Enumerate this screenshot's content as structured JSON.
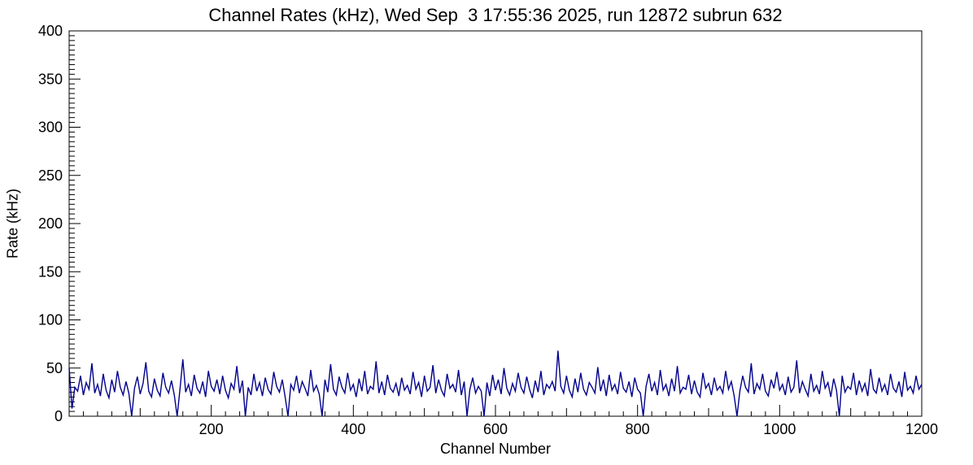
{
  "chart_data": {
    "type": "line",
    "title": "Channel Rates (kHz), Wed Sep  3 17:55:36 2025, run 12872 subrun 632",
    "xlabel": "Channel Number",
    "ylabel": "Rate (kHz)",
    "xlim": [
      0,
      1200
    ],
    "ylim": [
      0,
      400
    ],
    "x_ticks": [
      200,
      400,
      600,
      800,
      1000,
      1200
    ],
    "y_ticks": [
      0,
      50,
      100,
      150,
      200,
      250,
      300,
      350,
      400
    ],
    "grid": false,
    "legend_position": "none",
    "line_color": "#00008b",
    "frame_color": "#000000",
    "background_color": "#ffffff",
    "series": [
      {
        "name": "channel-rates",
        "x_start": 0,
        "x_step": 4,
        "values": [
          50,
          8,
          30,
          26,
          42,
          22,
          35,
          28,
          55,
          24,
          33,
          21,
          44,
          27,
          19,
          38,
          25,
          47,
          30,
          22,
          36,
          24,
          0,
          29,
          41,
          23,
          34,
          56,
          26,
          20,
          39,
          27,
          21,
          45,
          30,
          24,
          37,
          22,
          0,
          28,
          59,
          25,
          33,
          21,
          43,
          29,
          24,
          36,
          20,
          47,
          31,
          26,
          38,
          23,
          42,
          27,
          19,
          34,
          28,
          52,
          24,
          37,
          0,
          30,
          22,
          44,
          26,
          35,
          21,
          40,
          28,
          23,
          46,
          31,
          25,
          38,
          20,
          0,
          33,
          27,
          42,
          24,
          36,
          29,
          21,
          48,
          26,
          32,
          23,
          0,
          38,
          25,
          54,
          28,
          22,
          41,
          30,
          24,
          45,
          27,
          33,
          20,
          39,
          26,
          47,
          23,
          31,
          28,
          57,
          24,
          36,
          22,
          43,
          29,
          25,
          34,
          21,
          40,
          27,
          32,
          23,
          46,
          28,
          35,
          20,
          42,
          26,
          30,
          53,
          24,
          38,
          27,
          21,
          44,
          29,
          33,
          25,
          48,
          22,
          36,
          0,
          28,
          40,
          24,
          31,
          26,
          0,
          35,
          21,
          43,
          27,
          38,
          23,
          50,
          29,
          22,
          34,
          26,
          45,
          30,
          24,
          41,
          28,
          19,
          37,
          25,
          47,
          22,
          33,
          29,
          36,
          26,
          68,
          31,
          24,
          42,
          27,
          20,
          39,
          25,
          45,
          28,
          22,
          35,
          30,
          24,
          51,
          26,
          38,
          21,
          43,
          27,
          33,
          23,
          46,
          29,
          25,
          36,
          20,
          40,
          28,
          24,
          0,
          31,
          44,
          26,
          35,
          22,
          48,
          27,
          33,
          21,
          39,
          26,
          52,
          24,
          30,
          28,
          43,
          23,
          37,
          25,
          20,
          45,
          29,
          34,
          22,
          40,
          27,
          31,
          24,
          47,
          28,
          36,
          21,
          0,
          26,
          42,
          30,
          25,
          55,
          23,
          34,
          28,
          44,
          26,
          21,
          38,
          29,
          46,
          27,
          33,
          22,
          41,
          25,
          30,
          58,
          24,
          36,
          28,
          21,
          44,
          26,
          32,
          23,
          47,
          29,
          35,
          20,
          39,
          27,
          0,
          42,
          25,
          31,
          28,
          45,
          22,
          37,
          26,
          34,
          21,
          49,
          28,
          24,
          40,
          26,
          33,
          22,
          44,
          29,
          25,
          36,
          20,
          46,
          27,
          31,
          24,
          42,
          28,
          33
        ]
      }
    ]
  }
}
